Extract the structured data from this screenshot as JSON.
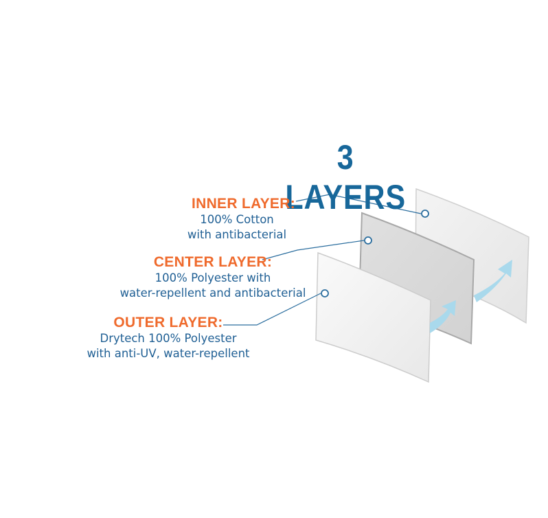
{
  "title": "3 LAYERS",
  "layers": [
    {
      "name": "INNER LAYER:",
      "line1": "100% Cotton",
      "line2": "with antibacterial"
    },
    {
      "name": "CENTER LAYER:",
      "line1": "100% Polyester with",
      "line2": "water-repellent and antibacterial"
    },
    {
      "name": "OUTER LAYER:",
      "line1": "Drytech 100% Polyester",
      "line2": "with anti-UV, water-repellent"
    }
  ],
  "colors": {
    "title": "#17679a",
    "layer_name": "#ef6a2c",
    "description": "#1f5f94",
    "arrow": "#a9d9ec",
    "connector": "#2a6d9e"
  }
}
